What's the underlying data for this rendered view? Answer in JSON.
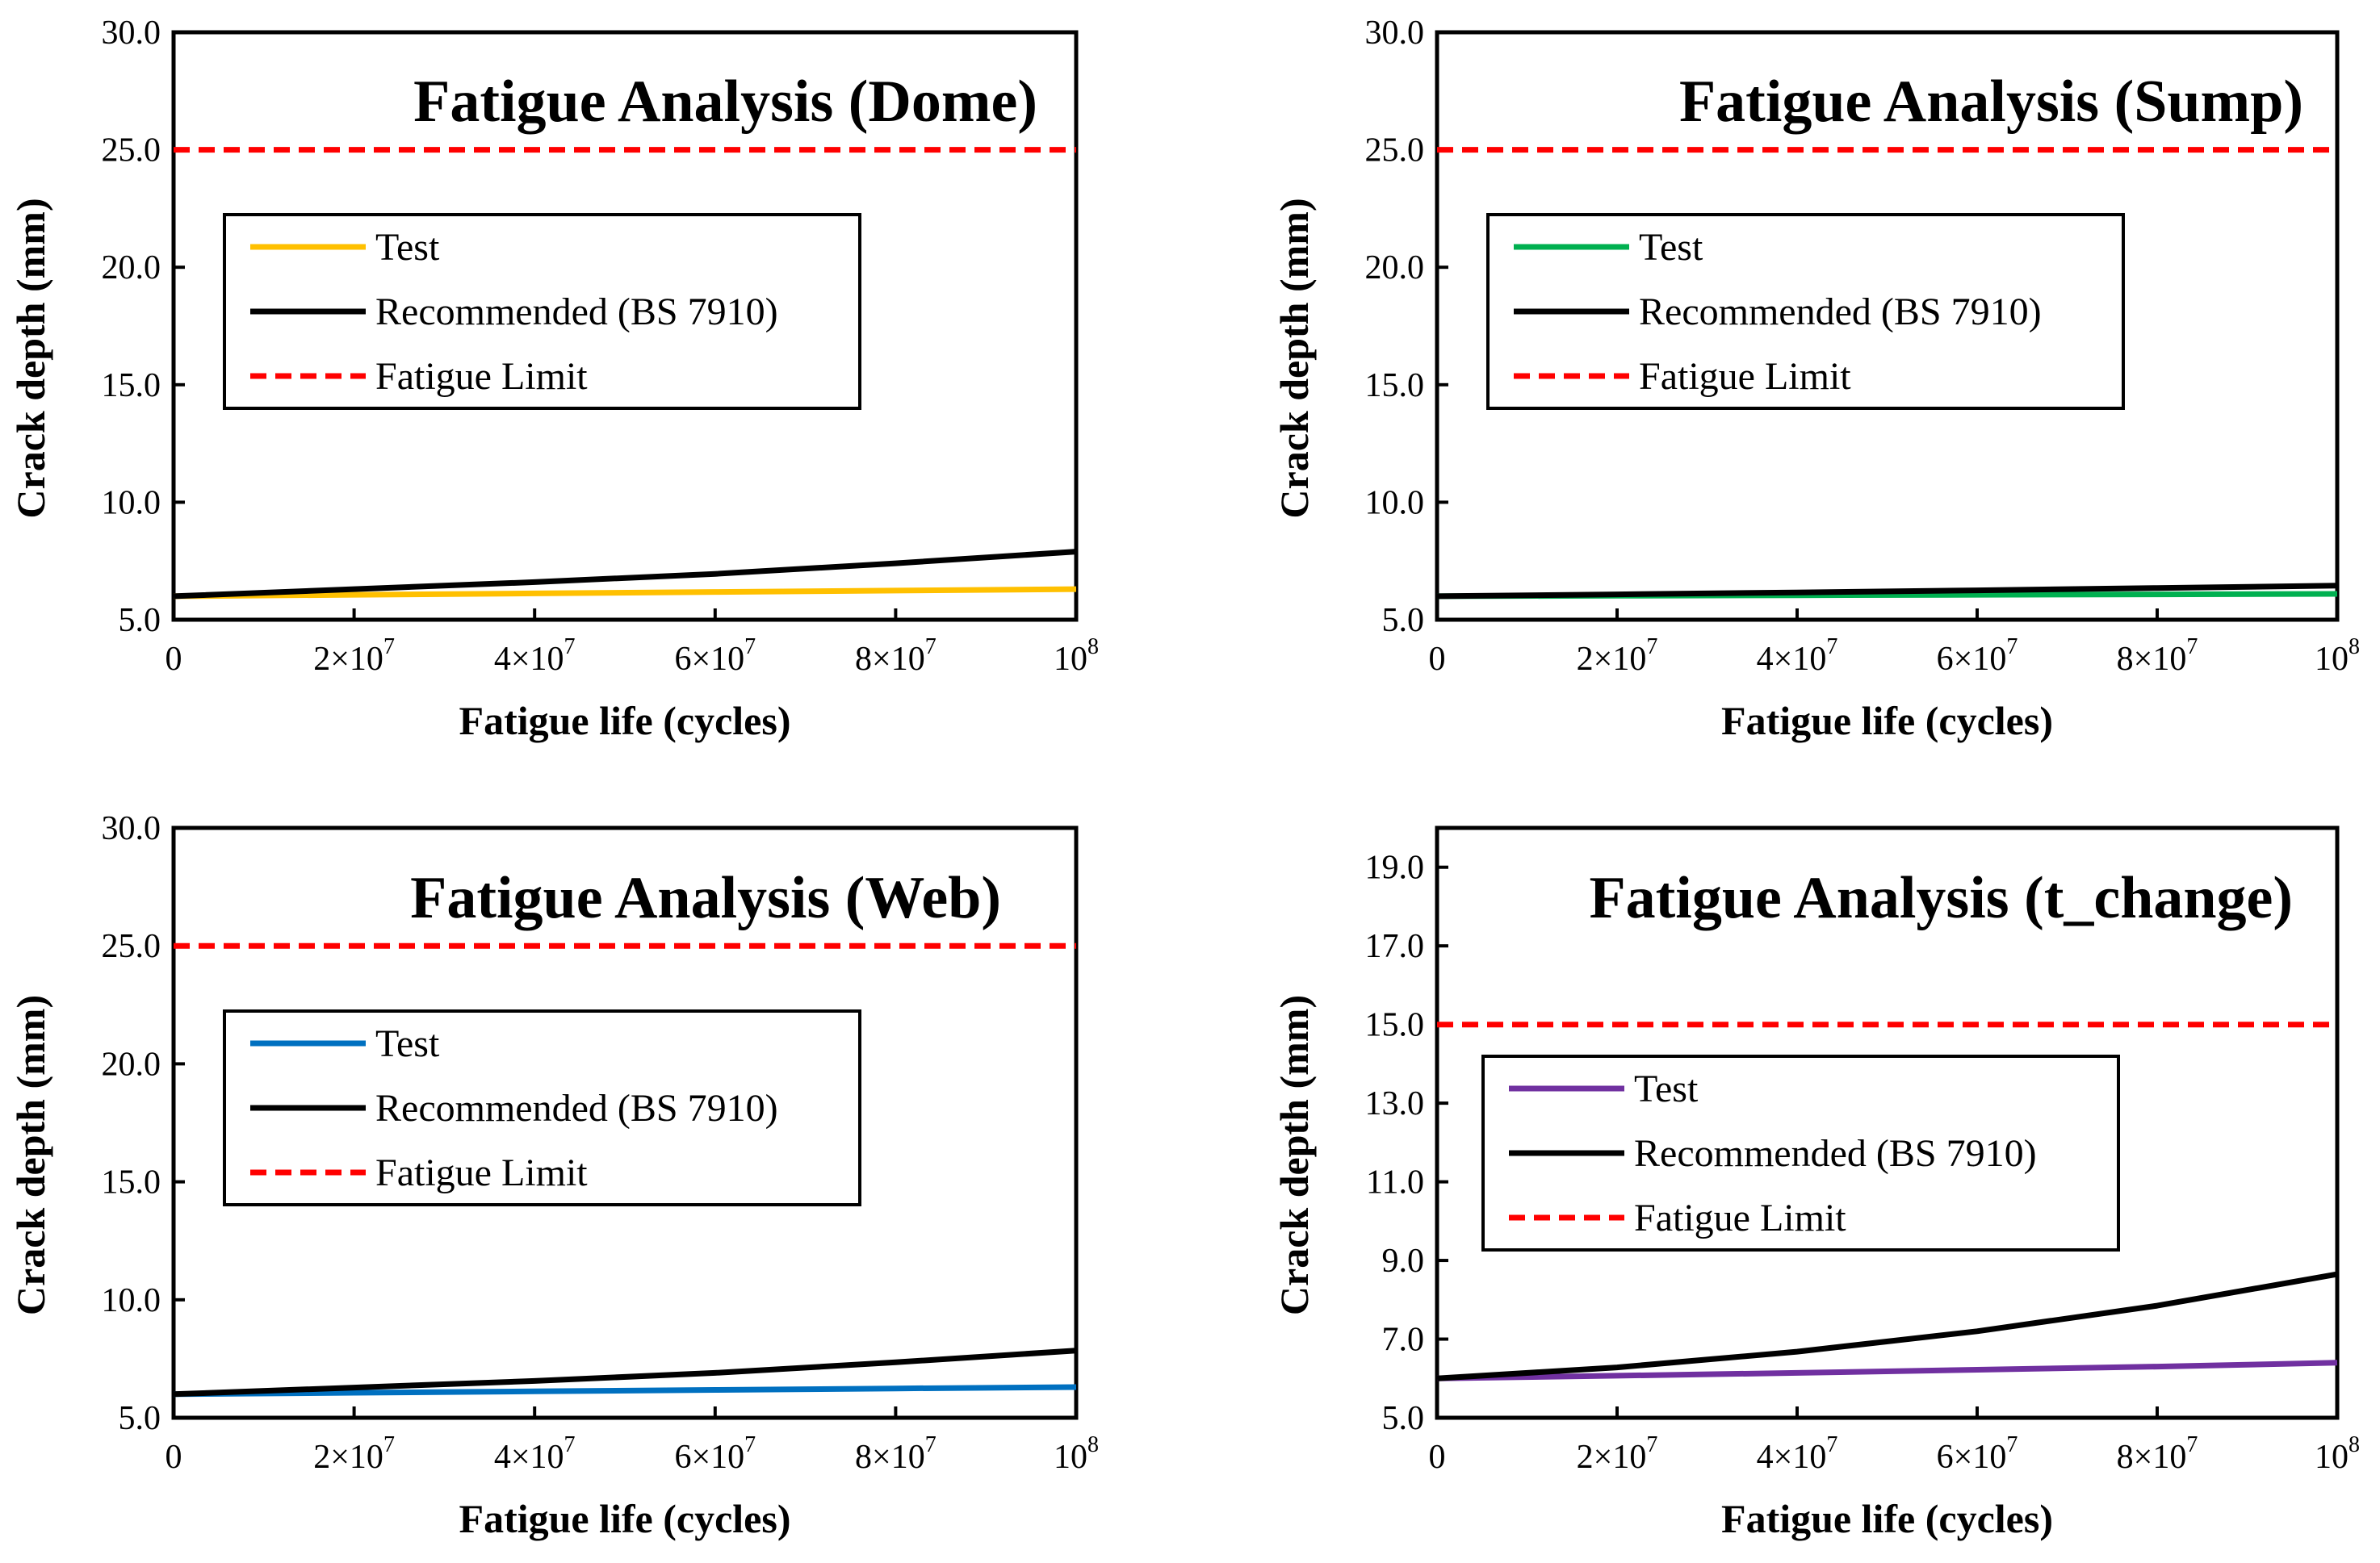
{
  "chart_data": [
    {
      "type": "line",
      "title": "Fatigue Analysis (Dome)",
      "xlabel": "Fatigue life (cycles)",
      "ylabel": "Crack depth (mm)",
      "xlim": [
        0,
        100000000
      ],
      "ylim": [
        5.0,
        30.0
      ],
      "yticks": [
        "5.0",
        "10.0",
        "15.0",
        "20.0",
        "25.0",
        "30.0"
      ],
      "xticks": [
        {
          "value": 0,
          "base": "0",
          "exp": ""
        },
        {
          "value": 20000000,
          "base": "2×10",
          "exp": "7"
        },
        {
          "value": 40000000,
          "base": "4×10",
          "exp": "7"
        },
        {
          "value": 60000000,
          "base": "6×10",
          "exp": "7"
        },
        {
          "value": 80000000,
          "base": "8×10",
          "exp": "7"
        },
        {
          "value": 100000000,
          "base": "10",
          "exp": "8"
        }
      ],
      "legend": {
        "position": "upper-left"
      },
      "series": [
        {
          "name": "Test",
          "color": "#FFC000",
          "style": "solid",
          "x": [
            0,
            20000000,
            40000000,
            60000000,
            80000000,
            100000000
          ],
          "y": [
            6.0,
            6.06,
            6.12,
            6.18,
            6.24,
            6.3
          ]
        },
        {
          "name": "Recommended (BS 7910)",
          "color": "#000000",
          "style": "solid",
          "x": [
            0,
            20000000,
            40000000,
            60000000,
            80000000,
            100000000
          ],
          "y": [
            6.0,
            6.3,
            6.6,
            6.95,
            7.4,
            7.9
          ]
        },
        {
          "name": "Fatigue Limit",
          "color": "#FF0000",
          "style": "dashed",
          "x": [
            0,
            100000000
          ],
          "y": [
            25.0,
            25.0
          ]
        }
      ]
    },
    {
      "type": "line",
      "title": "Fatigue Analysis (Sump)",
      "xlabel": "Fatigue life (cycles)",
      "ylabel": "Crack depth (mm)",
      "xlim": [
        0,
        100000000
      ],
      "ylim": [
        5.0,
        30.0
      ],
      "yticks": [
        "5.0",
        "10.0",
        "15.0",
        "20.0",
        "25.0",
        "30.0"
      ],
      "xticks": [
        {
          "value": 0,
          "base": "0",
          "exp": ""
        },
        {
          "value": 20000000,
          "base": "2×10",
          "exp": "7"
        },
        {
          "value": 40000000,
          "base": "4×10",
          "exp": "7"
        },
        {
          "value": 60000000,
          "base": "6×10",
          "exp": "7"
        },
        {
          "value": 80000000,
          "base": "8×10",
          "exp": "7"
        },
        {
          "value": 100000000,
          "base": "10",
          "exp": "8"
        }
      ],
      "legend": {
        "position": "upper-left"
      },
      "series": [
        {
          "name": "Test",
          "color": "#00B050",
          "style": "solid",
          "x": [
            0,
            20000000,
            40000000,
            60000000,
            80000000,
            100000000
          ],
          "y": [
            6.0,
            6.02,
            6.04,
            6.06,
            6.08,
            6.1
          ]
        },
        {
          "name": "Recommended (BS 7910)",
          "color": "#000000",
          "style": "solid",
          "x": [
            0,
            20000000,
            40000000,
            60000000,
            80000000,
            100000000
          ],
          "y": [
            6.0,
            6.08,
            6.16,
            6.25,
            6.35,
            6.45
          ]
        },
        {
          "name": "Fatigue Limit",
          "color": "#FF0000",
          "style": "dashed",
          "x": [
            0,
            100000000
          ],
          "y": [
            25.0,
            25.0
          ]
        }
      ]
    },
    {
      "type": "line",
      "title": "Fatigue Analysis (Web)",
      "xlabel": "Fatigue life (cycles)",
      "ylabel": "Crack depth (mm)",
      "xlim": [
        0,
        100000000
      ],
      "ylim": [
        5.0,
        30.0
      ],
      "yticks": [
        "5.0",
        "10.0",
        "15.0",
        "20.0",
        "25.0",
        "30.0"
      ],
      "xticks": [
        {
          "value": 0,
          "base": "0",
          "exp": ""
        },
        {
          "value": 20000000,
          "base": "2×10",
          "exp": "7"
        },
        {
          "value": 40000000,
          "base": "4×10",
          "exp": "7"
        },
        {
          "value": 60000000,
          "base": "6×10",
          "exp": "7"
        },
        {
          "value": 80000000,
          "base": "8×10",
          "exp": "7"
        },
        {
          "value": 100000000,
          "base": "10",
          "exp": "8"
        }
      ],
      "legend": {
        "position": "upper-left"
      },
      "series": [
        {
          "name": "Test",
          "color": "#0070C0",
          "style": "solid",
          "x": [
            0,
            20000000,
            40000000,
            60000000,
            80000000,
            100000000
          ],
          "y": [
            6.0,
            6.06,
            6.12,
            6.18,
            6.24,
            6.3
          ]
        },
        {
          "name": "Recommended (BS 7910)",
          "color": "#000000",
          "style": "solid",
          "x": [
            0,
            20000000,
            40000000,
            60000000,
            80000000,
            100000000
          ],
          "y": [
            6.0,
            6.28,
            6.56,
            6.9,
            7.35,
            7.85
          ]
        },
        {
          "name": "Fatigue Limit",
          "color": "#FF0000",
          "style": "dashed",
          "x": [
            0,
            100000000
          ],
          "y": [
            25.0,
            25.0
          ]
        }
      ]
    },
    {
      "type": "line",
      "title": "Fatigue Analysis (t_change)",
      "xlabel": "Fatigue life (cycles)",
      "ylabel": "Crack depth (mm)",
      "xlim": [
        0,
        100000000
      ],
      "ylim": [
        5.0,
        20.0
      ],
      "yticks": [
        "5.0",
        "7.0",
        "9.0",
        "11.0",
        "13.0",
        "15.0",
        "17.0",
        "19.0"
      ],
      "xticks": [
        {
          "value": 0,
          "base": "0",
          "exp": ""
        },
        {
          "value": 20000000,
          "base": "2×10",
          "exp": "7"
        },
        {
          "value": 40000000,
          "base": "4×10",
          "exp": "7"
        },
        {
          "value": 60000000,
          "base": "6×10",
          "exp": "7"
        },
        {
          "value": 80000000,
          "base": "8×10",
          "exp": "7"
        },
        {
          "value": 100000000,
          "base": "10",
          "exp": "8"
        }
      ],
      "legend": {
        "position": "upper-left"
      },
      "series": [
        {
          "name": "Test",
          "color": "#7030A0",
          "style": "solid",
          "x": [
            0,
            20000000,
            40000000,
            60000000,
            80000000,
            100000000
          ],
          "y": [
            6.0,
            6.07,
            6.14,
            6.22,
            6.3,
            6.4
          ]
        },
        {
          "name": "Recommended (BS 7910)",
          "color": "#000000",
          "style": "solid",
          "x": [
            0,
            20000000,
            40000000,
            60000000,
            80000000,
            100000000
          ],
          "y": [
            6.0,
            6.28,
            6.68,
            7.2,
            7.85,
            8.65
          ]
        },
        {
          "name": "Fatigue Limit",
          "color": "#FF0000",
          "style": "dashed",
          "x": [
            0,
            100000000
          ],
          "y": [
            15.0,
            15.0
          ]
        }
      ]
    }
  ]
}
